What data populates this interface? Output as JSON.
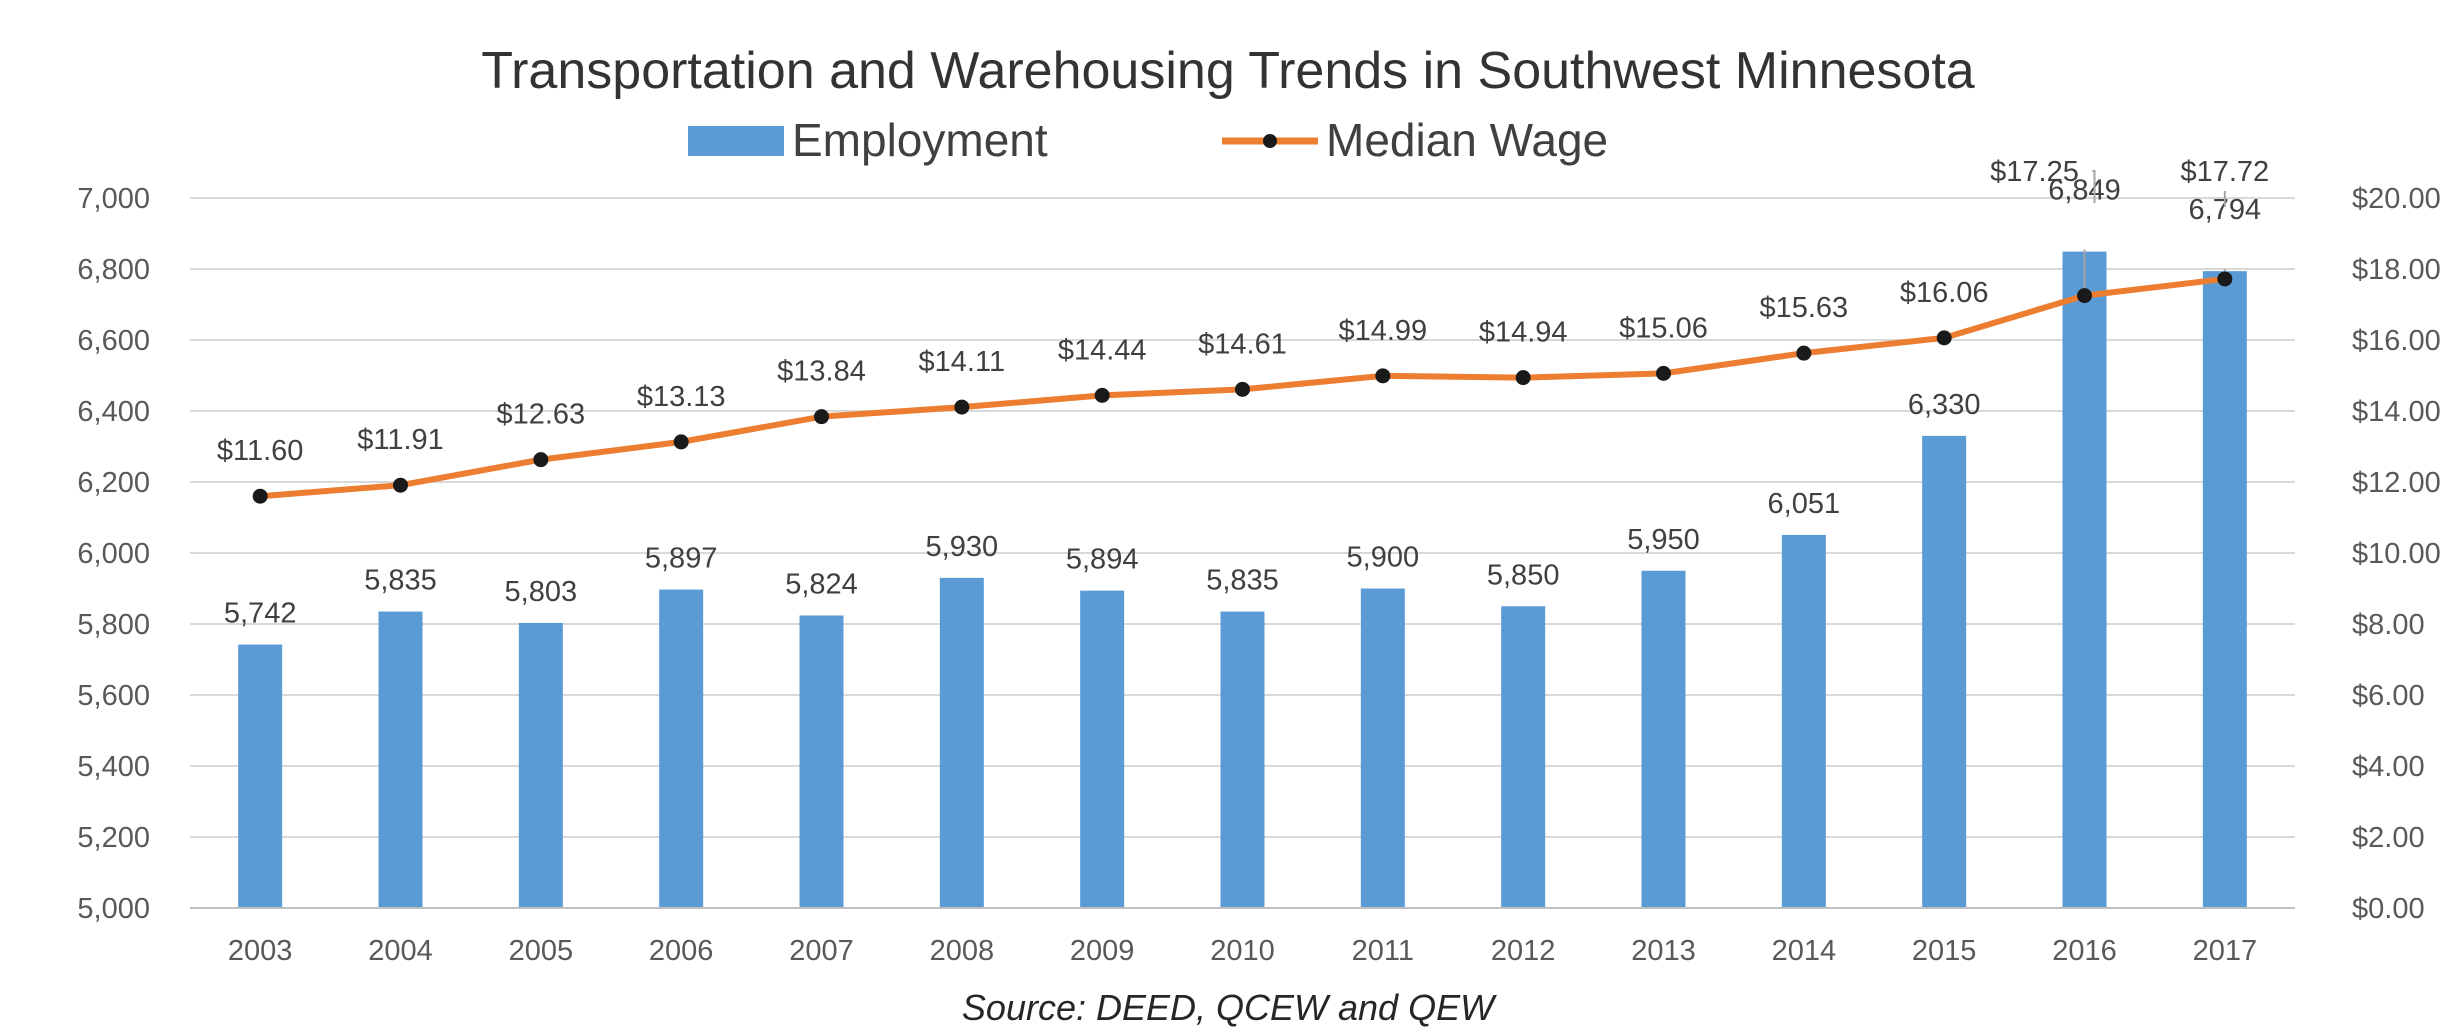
{
  "chart_data": {
    "type": "bar",
    "title": "Transportation and Warehousing Trends in Southwest Minnesota",
    "source": "Source: DEED, QCEW and QEW",
    "legend_position": "top-center",
    "grid": true,
    "categories": [
      "2003",
      "2004",
      "2005",
      "2006",
      "2007",
      "2008",
      "2009",
      "2010",
      "2011",
      "2012",
      "2013",
      "2014",
      "2015",
      "2016",
      "2017"
    ],
    "series": [
      {
        "name": "Employment",
        "type": "bar",
        "axis": "left",
        "color": "#5b9bd5",
        "values": [
          5742,
          5835,
          5803,
          5897,
          5824,
          5930,
          5894,
          5835,
          5900,
          5850,
          5950,
          6051,
          6330,
          6849,
          6794
        ],
        "labels": [
          "5,742",
          "5,835",
          "5,803",
          "5,897",
          "5,824",
          "5,930",
          "5,894",
          "5,835",
          "5,900",
          "5,850",
          "5,950",
          "6,051",
          "6,330",
          "6,849",
          "6,794"
        ]
      },
      {
        "name": "Median Wage",
        "type": "line",
        "axis": "right",
        "color": "#ed7d31",
        "marker_color": "#1a1a1a",
        "values": [
          11.6,
          11.91,
          12.63,
          13.13,
          13.84,
          14.11,
          14.44,
          14.61,
          14.99,
          14.94,
          15.06,
          15.63,
          16.06,
          17.25,
          17.72
        ],
        "labels": [
          "$11.60",
          "$11.91",
          "$12.63",
          "$13.13",
          "$13.84",
          "$14.11",
          "$14.44",
          "$14.61",
          "$14.99",
          "$14.94",
          "$15.06",
          "$15.63",
          "$16.06",
          "$17.25",
          "$17.72"
        ]
      }
    ],
    "y_left": {
      "range": [
        5000,
        7000
      ],
      "ticks": [
        "5,000",
        "5,200",
        "5,400",
        "5,600",
        "5,800",
        "6,000",
        "6,200",
        "6,400",
        "6,600",
        "6,800",
        "7,000"
      ]
    },
    "y_right": {
      "range": [
        0,
        20
      ],
      "ticks": [
        "$0.00",
        "$2.00",
        "$4.00",
        "$6.00",
        "$8.00",
        "$10.00",
        "$12.00",
        "$14.00",
        "$16.00",
        "$18.00",
        "$20.00"
      ]
    }
  }
}
